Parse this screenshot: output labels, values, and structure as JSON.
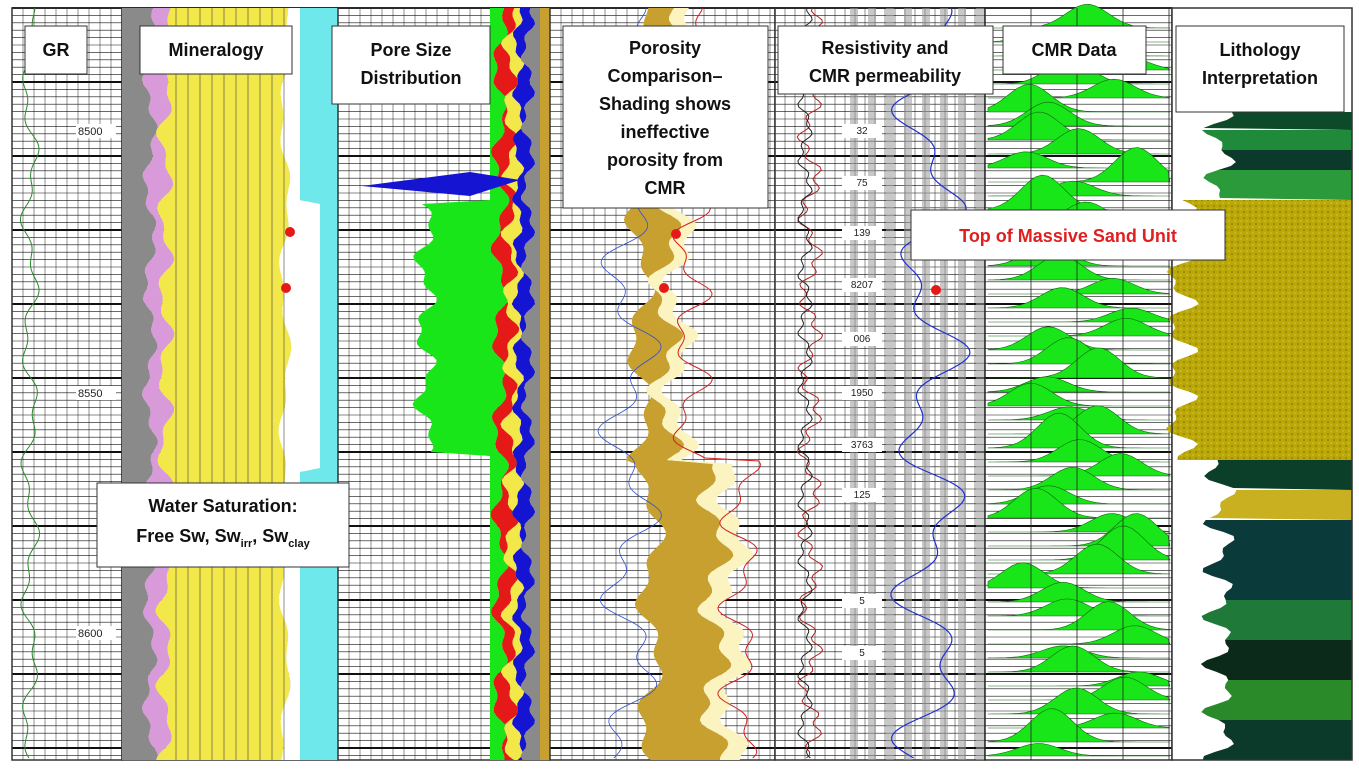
{
  "tracks": [
    {
      "id": "gr",
      "title_lines": [
        "GR"
      ]
    },
    {
      "id": "mineralogy",
      "title_lines": [
        "Mineralogy"
      ]
    },
    {
      "id": "pore_size",
      "title_lines": [
        "Pore Size",
        "Distribution"
      ]
    },
    {
      "id": "porosity",
      "title_lines": [
        "Porosity",
        "Comparison–",
        "Shading shows",
        "ineffective",
        "porosity from",
        "CMR"
      ]
    },
    {
      "id": "resistivity",
      "title_lines": [
        "Resistivity and",
        "CMR permeability"
      ]
    },
    {
      "id": "cmr",
      "title_lines": [
        "CMR Data"
      ]
    },
    {
      "id": "lithology",
      "title_lines": [
        "Lithology",
        "Interpretation"
      ]
    }
  ],
  "depth_labels": [
    "8500",
    "8550",
    "8600"
  ],
  "perm_labels": [
    "32",
    "75",
    "139",
    "8207",
    "006",
    "1950",
    "3763",
    "125",
    "5",
    "5"
  ],
  "water_saturation": {
    "line1": "Water Saturation:",
    "line2_prefix": "Free Sw, Sw",
    "irr_sub": "irr",
    "comma": ",",
    "sw2": " Sw",
    "clay_sub": "clay"
  },
  "sand_annotation": "Top of Massive Sand Unit",
  "colors": {
    "green": "#19e619",
    "yellow": "#f2e84a",
    "red": "#e61919",
    "blue": "#1414d2",
    "gray": "#8a8a8a",
    "tan": "#c8a030",
    "cyan": "#6fe8ec",
    "pink": "#d89ad8",
    "olive": "#b9a808",
    "annotation_red": "#e02020"
  }
}
